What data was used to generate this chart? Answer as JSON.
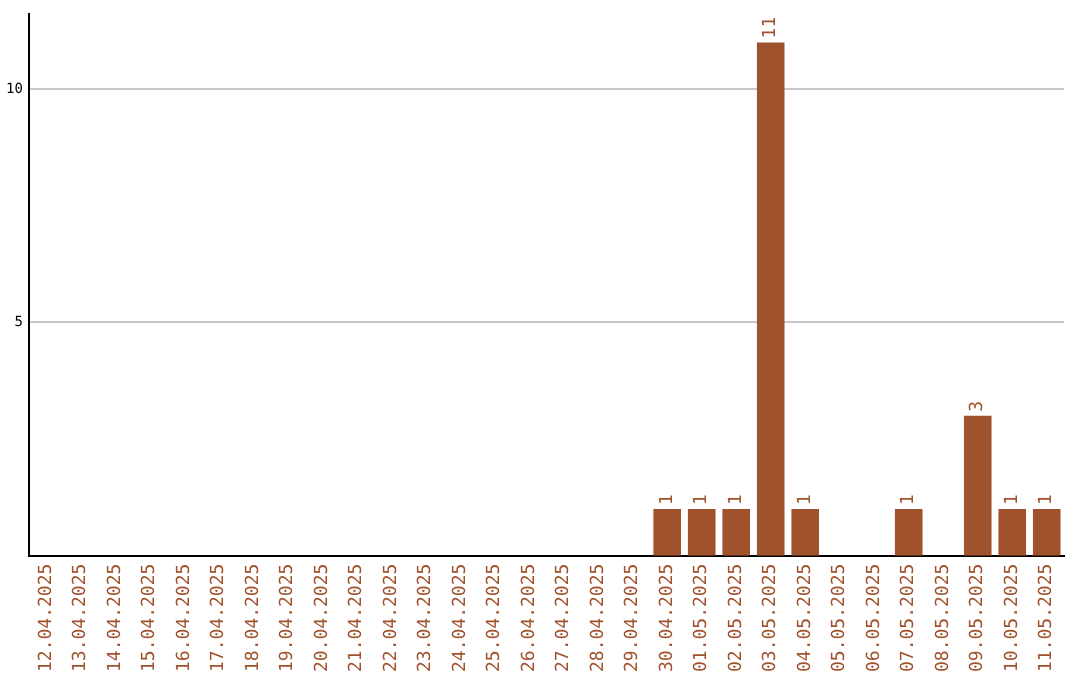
{
  "chart_data": {
    "type": "bar",
    "categories": [
      "12.04.2025",
      "13.04.2025",
      "14.04.2025",
      "15.04.2025",
      "16.04.2025",
      "17.04.2025",
      "18.04.2025",
      "19.04.2025",
      "20.04.2025",
      "21.04.2025",
      "22.04.2025",
      "23.04.2025",
      "24.04.2025",
      "25.04.2025",
      "26.04.2025",
      "27.04.2025",
      "28.04.2025",
      "29.04.2025",
      "30.04.2025",
      "01.05.2025",
      "02.05.2025",
      "03.05.2025",
      "04.05.2025",
      "05.05.2025",
      "06.05.2025",
      "07.05.2025",
      "08.05.2025",
      "09.05.2025",
      "10.05.2025",
      "11.05.2025"
    ],
    "values": [
      0,
      0,
      0,
      0,
      0,
      0,
      0,
      0,
      0,
      0,
      0,
      0,
      0,
      0,
      0,
      0,
      0,
      0,
      1,
      1,
      1,
      11,
      1,
      0,
      0,
      1,
      0,
      3,
      1,
      1
    ],
    "value_labels": [
      null,
      null,
      null,
      null,
      null,
      null,
      null,
      null,
      null,
      null,
      null,
      null,
      null,
      null,
      null,
      null,
      null,
      null,
      "1",
      "1",
      "1",
      "11",
      "1",
      null,
      null,
      "1",
      null,
      "3",
      "1",
      "1"
    ],
    "color": "#a0522d",
    "ylim": [
      0,
      11.6
    ],
    "yticks": [
      5,
      10
    ],
    "grid": "y",
    "legend": false
  }
}
